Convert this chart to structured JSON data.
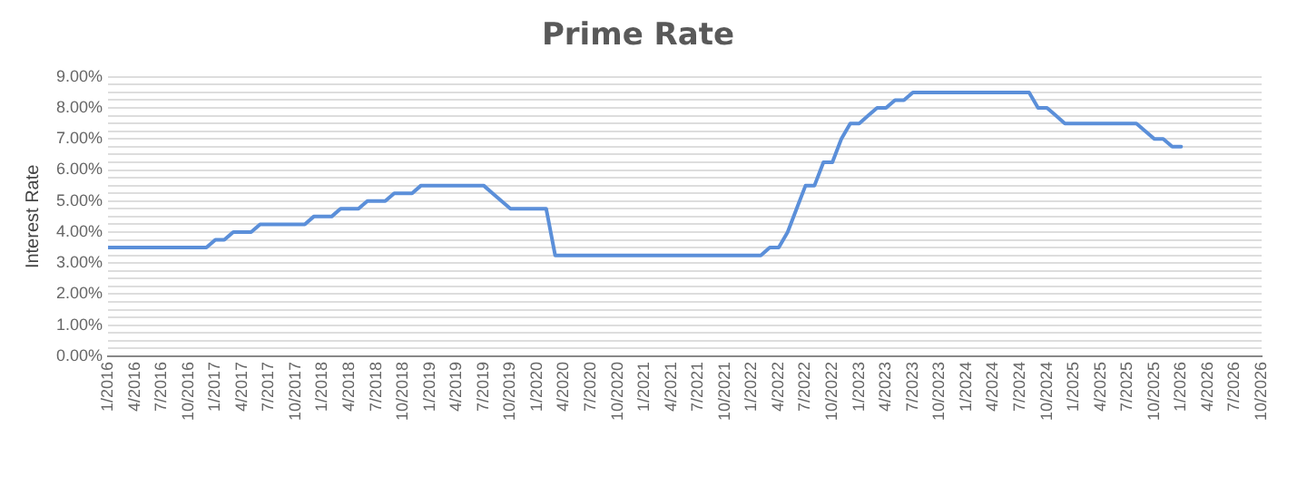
{
  "chart_data": {
    "type": "line",
    "title": "Prime Rate",
    "ylabel": "Interest Rate",
    "x": [
      "2016-01",
      "2016-12",
      "2017-01",
      "2017-02",
      "2017-03",
      "2017-05",
      "2017-06",
      "2017-11",
      "2017-12",
      "2018-02",
      "2018-03",
      "2018-05",
      "2018-06",
      "2018-08",
      "2018-09",
      "2018-11",
      "2018-12",
      "2019-07",
      "2019-08",
      "2019-09",
      "2019-10",
      "2020-02",
      "2020-03",
      "2022-02",
      "2022-03",
      "2022-04",
      "2022-05",
      "2022-06",
      "2022-07",
      "2022-08",
      "2022-09",
      "2022-10",
      "2022-11",
      "2022-12",
      "2023-01",
      "2023-02",
      "2023-03",
      "2023-04",
      "2023-05",
      "2023-06",
      "2023-07",
      "2024-08",
      "2024-09",
      "2024-10",
      "2024-11",
      "2024-12",
      "2025-08",
      "2025-09",
      "2025-10",
      "2025-11",
      "2025-12",
      "2026-01"
    ],
    "series": [
      {
        "color": "#5b8fd9",
        "values": [
          3.5,
          3.5,
          3.75,
          3.75,
          4.0,
          4.0,
          4.25,
          4.25,
          4.5,
          4.5,
          4.75,
          4.75,
          5.0,
          5.0,
          5.25,
          5.25,
          5.5,
          5.5,
          5.25,
          5.0,
          4.75,
          4.75,
          3.25,
          3.25,
          3.5,
          3.5,
          4.0,
          4.75,
          5.5,
          5.5,
          6.25,
          6.25,
          7.0,
          7.5,
          7.5,
          7.75,
          8.0,
          8.0,
          8.25,
          8.25,
          8.5,
          8.5,
          8.0,
          8.0,
          7.75,
          7.5,
          7.5,
          7.25,
          7.0,
          7.0,
          6.75,
          6.75
        ]
      }
    ],
    "xlim": [
      "2016-01",
      "2026-10"
    ],
    "xticks": [
      {
        "value": "2016-01",
        "label": "1/2016"
      },
      {
        "value": "2016-04",
        "label": "4/2016"
      },
      {
        "value": "2016-07",
        "label": "7/2016"
      },
      {
        "value": "2016-10",
        "label": "10/2016"
      },
      {
        "value": "2017-01",
        "label": "1/2017"
      },
      {
        "value": "2017-04",
        "label": "4/2017"
      },
      {
        "value": "2017-07",
        "label": "7/2017"
      },
      {
        "value": "2017-10",
        "label": "10/2017"
      },
      {
        "value": "2018-01",
        "label": "1/2018"
      },
      {
        "value": "2018-04",
        "label": "4/2018"
      },
      {
        "value": "2018-07",
        "label": "7/2018"
      },
      {
        "value": "2018-10",
        "label": "10/2018"
      },
      {
        "value": "2019-01",
        "label": "1/2019"
      },
      {
        "value": "2019-04",
        "label": "4/2019"
      },
      {
        "value": "2019-07",
        "label": "7/2019"
      },
      {
        "value": "2019-10",
        "label": "10/2019"
      },
      {
        "value": "2020-01",
        "label": "1/2020"
      },
      {
        "value": "2020-04",
        "label": "4/2020"
      },
      {
        "value": "2020-07",
        "label": "7/2020"
      },
      {
        "value": "2020-10",
        "label": "10/2020"
      },
      {
        "value": "2021-01",
        "label": "1/2021"
      },
      {
        "value": "2021-04",
        "label": "4/2021"
      },
      {
        "value": "2021-07",
        "label": "7/2021"
      },
      {
        "value": "2021-10",
        "label": "10/2021"
      },
      {
        "value": "2022-01",
        "label": "1/2022"
      },
      {
        "value": "2022-04",
        "label": "4/2022"
      },
      {
        "value": "2022-07",
        "label": "7/2022"
      },
      {
        "value": "2022-10",
        "label": "10/2022"
      },
      {
        "value": "2023-01",
        "label": "1/2023"
      },
      {
        "value": "2023-04",
        "label": "4/2023"
      },
      {
        "value": "2023-07",
        "label": "7/2023"
      },
      {
        "value": "2023-10",
        "label": "10/2023"
      },
      {
        "value": "2024-01",
        "label": "1/2024"
      },
      {
        "value": "2024-04",
        "label": "4/2024"
      },
      {
        "value": "2024-07",
        "label": "7/2024"
      },
      {
        "value": "2024-10",
        "label": "10/2024"
      },
      {
        "value": "2025-01",
        "label": "1/2025"
      },
      {
        "value": "2025-04",
        "label": "4/2025"
      },
      {
        "value": "2025-07",
        "label": "7/2025"
      },
      {
        "value": "2025-10",
        "label": "10/2025"
      },
      {
        "value": "2026-01",
        "label": "1/2026"
      },
      {
        "value": "2026-04",
        "label": "4/2026"
      },
      {
        "value": "2026-07",
        "label": "7/2026"
      },
      {
        "value": "2026-10",
        "label": "10/2026"
      }
    ],
    "ylim": [
      0,
      9
    ],
    "yticks": [
      {
        "value": 0,
        "label": "0.00%"
      },
      {
        "value": 0.25,
        "label": null
      },
      {
        "value": 0.5,
        "label": null
      },
      {
        "value": 0.75,
        "label": null
      },
      {
        "value": 1,
        "label": "1.00%"
      },
      {
        "value": 1.25,
        "label": null
      },
      {
        "value": 1.5,
        "label": null
      },
      {
        "value": 1.75,
        "label": null
      },
      {
        "value": 2,
        "label": "2.00%"
      },
      {
        "value": 2.25,
        "label": null
      },
      {
        "value": 2.5,
        "label": null
      },
      {
        "value": 2.75,
        "label": null
      },
      {
        "value": 3,
        "label": "3.00%"
      },
      {
        "value": 3.25,
        "label": null
      },
      {
        "value": 3.5,
        "label": null
      },
      {
        "value": 3.75,
        "label": null
      },
      {
        "value": 4,
        "label": "4.00%"
      },
      {
        "value": 4.25,
        "label": null
      },
      {
        "value": 4.5,
        "label": null
      },
      {
        "value": 4.75,
        "label": null
      },
      {
        "value": 5,
        "label": "5.00%"
      },
      {
        "value": 5.25,
        "label": null
      },
      {
        "value": 5.5,
        "label": null
      },
      {
        "value": 5.75,
        "label": null
      },
      {
        "value": 6,
        "label": "6.00%"
      },
      {
        "value": 6.25,
        "label": null
      },
      {
        "value": 6.5,
        "label": null
      },
      {
        "value": 6.75,
        "label": null
      },
      {
        "value": 7,
        "label": "7.00%"
      },
      {
        "value": 7.25,
        "label": null
      },
      {
        "value": 7.5,
        "label": null
      },
      {
        "value": 7.75,
        "label": null
      },
      {
        "value": 8,
        "label": "8.00%"
      },
      {
        "value": 8.25,
        "label": null
      },
      {
        "value": 8.5,
        "label": null
      },
      {
        "value": 8.75,
        "label": null
      },
      {
        "value": 9,
        "label": "9.00%"
      }
    ],
    "grid": "y",
    "legend": false,
    "marker": "none",
    "line_style": "solid"
  }
}
